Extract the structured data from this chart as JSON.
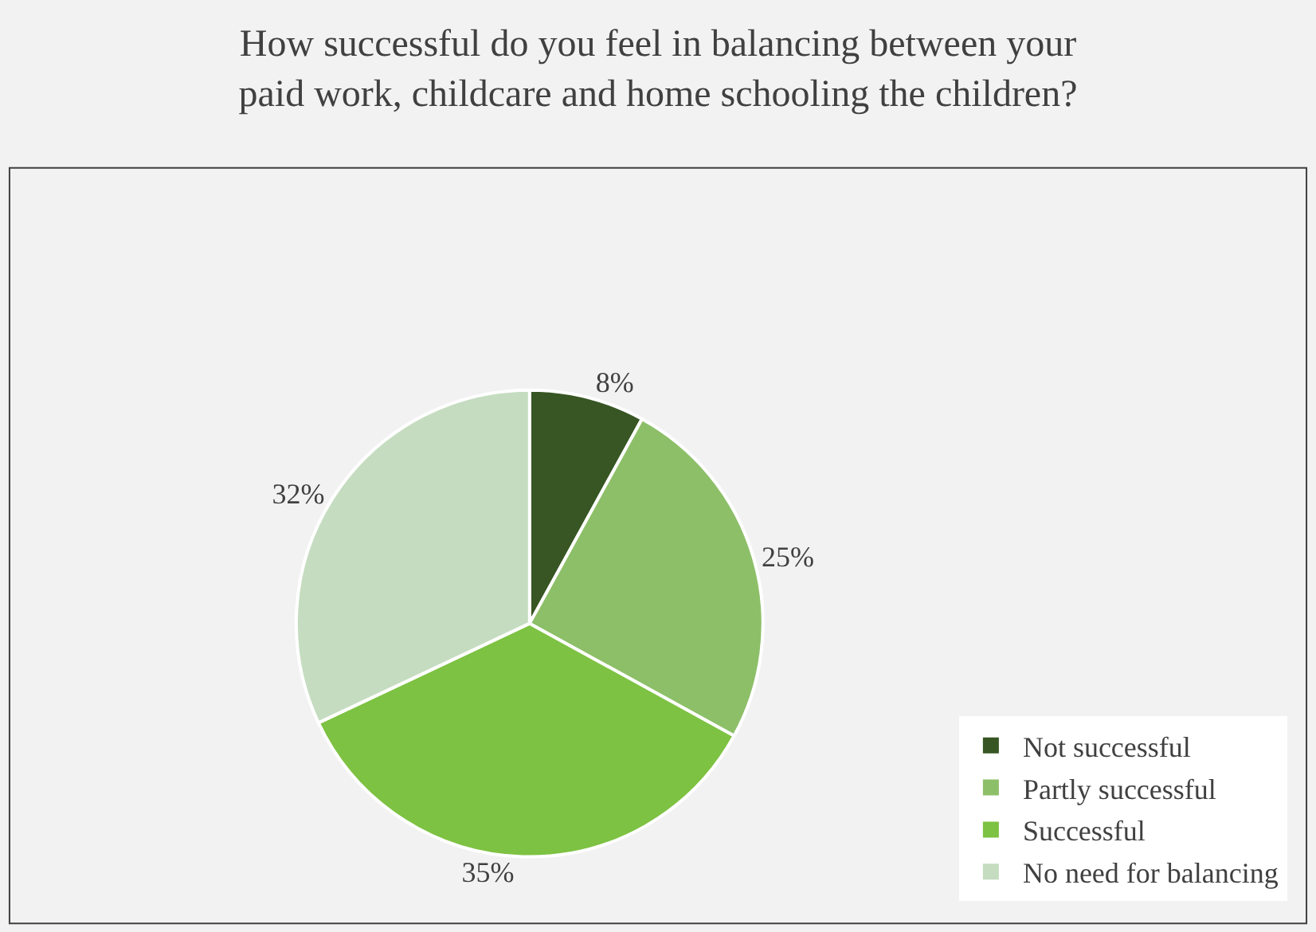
{
  "chart_data": {
    "type": "pie",
    "title": "How successful do you feel in balancing between your\npaid work, childcare and home schooling the children?",
    "categories": [
      "Not successful",
      "Partly successful",
      "Successful",
      "No need for balancing"
    ],
    "values": [
      8,
      25,
      35,
      32
    ],
    "value_labels": [
      "8%",
      "25%",
      "35%",
      "32%"
    ],
    "colors": [
      "#375623",
      "#8dbf68",
      "#7dc242",
      "#c5dcc0"
    ],
    "legend": "bottom right"
  }
}
